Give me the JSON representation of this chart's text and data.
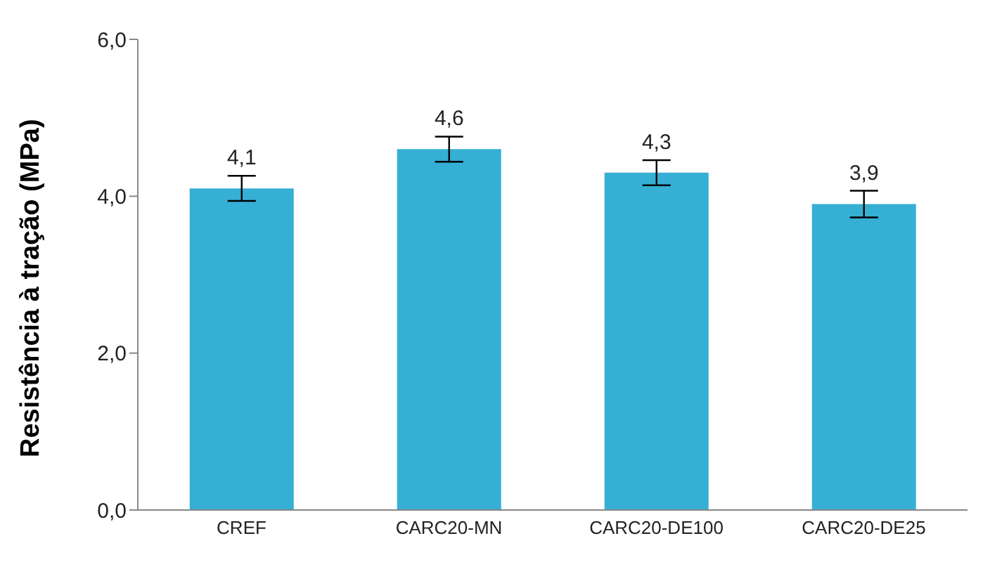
{
  "chart_data": {
    "type": "bar",
    "ylabel": "Resistência à tração (MPa)",
    "categories": [
      "CREF",
      "CARC20-MN",
      "CARC20-DE100",
      "CARC20-DE25"
    ],
    "values": [
      4.1,
      4.6,
      4.3,
      3.9
    ],
    "errors": [
      0.16,
      0.16,
      0.16,
      0.17
    ],
    "color": "#36afd5",
    "ylim": [
      0,
      6
    ],
    "yticks": [
      {
        "value": 0,
        "label": "0,0"
      },
      {
        "value": 2,
        "label": "2,0"
      },
      {
        "value": 4,
        "label": "4,0"
      },
      {
        "value": 6,
        "label": "6,0"
      }
    ],
    "value_labels": [
      "4,1",
      "4,6",
      "4,3",
      "3,9"
    ],
    "grid": false,
    "legend": false
  }
}
